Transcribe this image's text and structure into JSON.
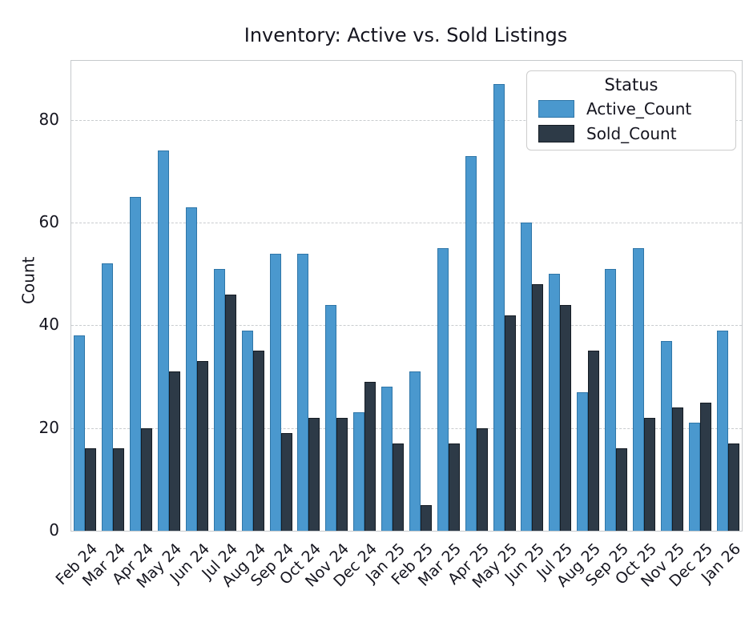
{
  "figure": {
    "background": "#ffffff",
    "text_color": "#15151f",
    "grid_color": "#c9cccf",
    "spine_color": "#c6c9cc"
  },
  "chart_data": {
    "type": "bar",
    "title": "Inventory: Active vs. Sold Listings",
    "xlabel": "",
    "ylabel": "Count",
    "ylim": [
      0,
      91.5
    ],
    "yticks": [
      0,
      20,
      40,
      60,
      80
    ],
    "grid": "horizontal-dashed-at-yticks",
    "legend": {
      "title": "Status",
      "position": "upper-right-inside"
    },
    "categories": [
      "Feb 24",
      "Mar 24",
      "Apr 24",
      "May 24",
      "Jun 24",
      "Jul 24",
      "Aug 24",
      "Sep 24",
      "Oct 24",
      "Nov 24",
      "Dec 24",
      "Jan 25",
      "Feb 25",
      "Mar 25",
      "Apr 25",
      "May 25",
      "Jun 25",
      "Jul 25",
      "Aug 25",
      "Sep 25",
      "Oct 25",
      "Nov 25",
      "Dec 25",
      "Jan 26"
    ],
    "series": [
      {
        "name": "Active_Count",
        "color": "#4a98ce",
        "edge_color": "#2f76a8",
        "values": [
          38,
          52,
          65,
          74,
          63,
          51,
          39,
          54,
          54,
          44,
          23,
          28,
          31,
          55,
          73,
          87,
          60,
          50,
          27,
          51,
          55,
          37,
          21,
          39
        ]
      },
      {
        "name": "Sold_Count",
        "color": "#2d3a47",
        "edge_color": "#151c24",
        "values": [
          16,
          16,
          20,
          31,
          33,
          46,
          35,
          19,
          22,
          22,
          29,
          17,
          5,
          17,
          20,
          42,
          48,
          44,
          35,
          16,
          22,
          24,
          25,
          17
        ]
      }
    ]
  }
}
